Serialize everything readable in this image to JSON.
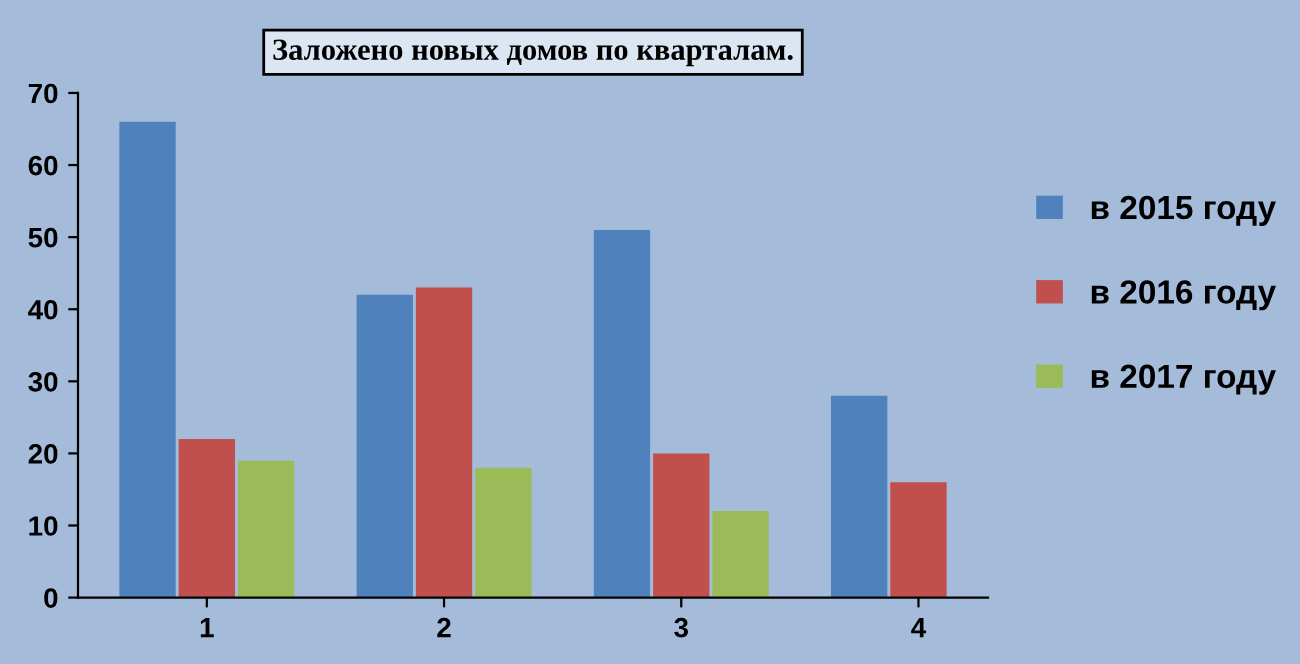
{
  "chart_data": {
    "type": "bar",
    "title": "Заложено новых домов по кварталам.",
    "categories": [
      "1",
      "2",
      "3",
      "4"
    ],
    "series": [
      {
        "name": "в 2015 году",
        "color": "#4f81bd",
        "values": [
          66,
          42,
          51,
          28
        ]
      },
      {
        "name": "в 2016 году",
        "color": "#c0504d",
        "values": [
          22,
          43,
          20,
          16
        ]
      },
      {
        "name": "в 2017 году",
        "color": "#9bbb59",
        "values": [
          19,
          18,
          12,
          null
        ]
      }
    ],
    "ylim": [
      0,
      70
    ],
    "yticks": [
      0,
      10,
      20,
      30,
      40,
      50,
      60,
      70
    ],
    "grid": false,
    "legend": "right"
  }
}
